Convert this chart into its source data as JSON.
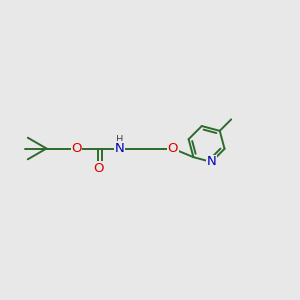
{
  "background_color": "#e8e8e8",
  "bond_color": "#2d6b2d",
  "bond_width": 1.4,
  "atom_colors": {
    "O": "#dd0000",
    "N": "#0000bb",
    "C": "#2d6b2d"
  },
  "font_size": 9.5,
  "small_font_size": 8.0
}
